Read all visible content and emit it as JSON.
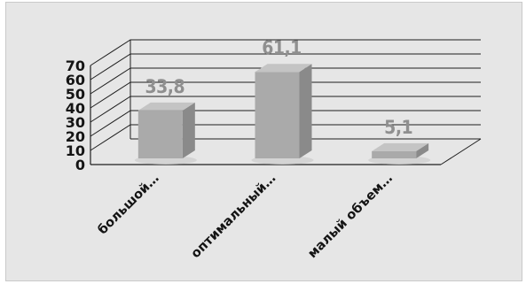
{
  "chart_data": {
    "type": "bar",
    "style": "3d-column",
    "categories": [
      "большой…",
      "оптимальный…",
      "малый объем…"
    ],
    "values": [
      33.8,
      61.1,
      5.1
    ],
    "data_labels": [
      "33,8",
      "61,1",
      "5,1"
    ],
    "yticks": [
      "0",
      "10",
      "20",
      "30",
      "40",
      "50",
      "60",
      "70"
    ],
    "ylim": [
      0,
      70
    ],
    "grid": true,
    "legend": "none",
    "colors": {
      "bar_front": "#aaaaaa",
      "bar_side": "#8a8a8a",
      "bar_top": "#c4c4c4",
      "grid": "#1f1f1f",
      "label": "#8f8f8f",
      "background": "#e6e6e6"
    }
  }
}
